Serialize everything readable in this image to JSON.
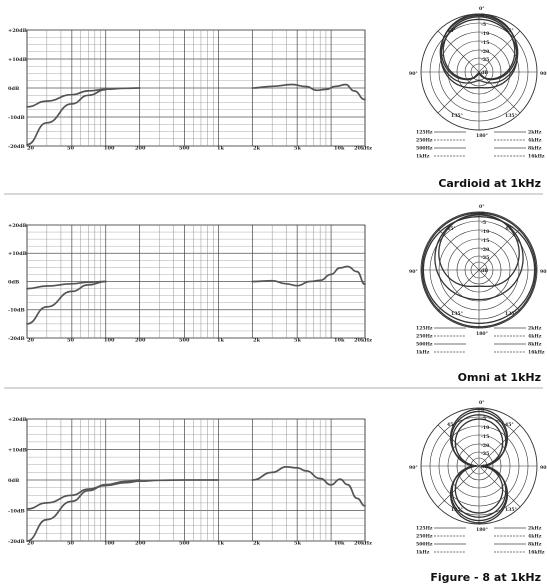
{
  "chart_data": [
    {
      "type": "line",
      "title": "Cardioid at 1kHz",
      "frequency_response": {
        "x_scale": "log",
        "xlim": [
          20,
          20000
        ],
        "ylim": [
          -20,
          20
        ],
        "y_tick_labels": [
          "+20dB",
          "+10dB",
          "0dB",
          "-10dB",
          "-20dB"
        ],
        "x_tick_labels": [
          "20",
          "50",
          "100",
          "200",
          "500",
          "1k",
          "2k",
          "5k",
          "10k",
          "20kHz"
        ],
        "series": [
          {
            "x": [
              20,
              30,
              50,
              70,
              100,
              150,
              200
            ],
            "y": [
              -6.5,
              -4.5,
              -2.3,
              -1.0,
              -0.4,
              -0.1,
              0
            ]
          },
          {
            "x": [
              20,
              30,
              50,
              70,
              100
            ],
            "y": [
              -19.5,
              -12,
              -5.5,
              -2.5,
              -0.6
            ]
          },
          {
            "x": [
              2000,
              3000,
              4500,
              6000,
              7500,
              9000,
              11000,
              13500,
              16000,
              20000
            ],
            "y": [
              0,
              0.6,
              1.2,
              0.5,
              -0.8,
              -0.5,
              0.6,
              1.2,
              -1,
              -4
            ]
          }
        ]
      },
      "polar": {
        "angle_labels": [
          "0°",
          "45°",
          "90°",
          "135°",
          "180°",
          "135°",
          "90°",
          "45°"
        ],
        "ring_labels": [
          "0",
          "-5",
          "-10",
          "-15",
          "-20",
          "-25",
          "dB"
        ],
        "legend_left": [
          "125Hz",
          "250Hz",
          "500Hz",
          "1kHz"
        ],
        "legend_right": [
          "2kHz",
          "4kHz",
          "8kHz",
          "16kHz"
        ]
      }
    },
    {
      "type": "line",
      "title": "Omni at 1kHz",
      "frequency_response": {
        "x_scale": "log",
        "xlim": [
          20,
          20000
        ],
        "ylim": [
          -20,
          20
        ],
        "y_tick_labels": [
          "+20dB",
          "+10dB",
          "0dB",
          "-10dB",
          "-20dB"
        ],
        "x_tick_labels": [
          "20",
          "50",
          "100",
          "200",
          "500",
          "1k",
          "2k",
          "5k",
          "10k",
          "20kHz"
        ],
        "series": [
          {
            "x": [
              20,
              30,
              50,
              70,
              100
            ],
            "y": [
              -2.5,
              -1.6,
              -0.8,
              -0.2,
              0
            ]
          },
          {
            "x": [
              20,
              30,
              50,
              70,
              100
            ],
            "y": [
              -15,
              -9,
              -3.5,
              -1.2,
              0
            ]
          },
          {
            "x": [
              2000,
              3000,
              4000,
              5000,
              6500,
              8000,
              10000,
              12000,
              14000,
              17000,
              20000
            ],
            "y": [
              0,
              0.3,
              -0.8,
              -1.5,
              0,
              0.4,
              2.5,
              4.8,
              5.3,
              3.5,
              -1
            ]
          }
        ]
      },
      "polar": {
        "angle_labels": [
          "0°",
          "45°",
          "90°",
          "135°",
          "180°",
          "135°",
          "90°",
          "45°"
        ],
        "ring_labels": [
          "0",
          "-5",
          "-10",
          "-15",
          "-20",
          "-25",
          "dB"
        ],
        "legend_left": [
          "125Hz",
          "250Hz",
          "500Hz",
          "1kHz"
        ],
        "legend_right": [
          "2kHz",
          "4kHz",
          "8kHz",
          "16kHz"
        ]
      }
    },
    {
      "type": "line",
      "title": "Figure - 8 at 1kHz",
      "frequency_response": {
        "x_scale": "log",
        "xlim": [
          20,
          20000
        ],
        "ylim": [
          -20,
          20
        ],
        "y_tick_labels": [
          "+20dB",
          "+10dB",
          "0dB",
          "-10dB",
          "-20dB"
        ],
        "x_tick_labels": [
          "20",
          "50",
          "100",
          "200",
          "500",
          "1k",
          "2k",
          "5k",
          "10k",
          "20kHz"
        ],
        "series": [
          {
            "x": [
              20,
              30,
              50,
              70,
              100,
              150,
              200,
              300,
              500,
              700,
              1000
            ],
            "y": [
              -9.5,
              -7.5,
              -5,
              -3,
              -1.8,
              -0.9,
              -0.4,
              -0.1,
              0,
              0,
              0
            ]
          },
          {
            "x": [
              20,
              30,
              50,
              70,
              100,
              150,
              200
            ],
            "y": [
              -20,
              -13,
              -7,
              -3.5,
              -1.5,
              -0.5,
              0
            ]
          },
          {
            "x": [
              2000,
              3000,
              4000,
              5000,
              6000,
              8000,
              10000,
              12000,
              14000,
              17000,
              20000
            ],
            "y": [
              0,
              2.5,
              4.3,
              4,
              3,
              0.5,
              -1.6,
              0.3,
              -1.5,
              -6,
              -8.5
            ]
          }
        ]
      },
      "polar": {
        "angle_labels": [
          "0°",
          "45°",
          "90°",
          "135°",
          "180°",
          "135°",
          "90°",
          "45°"
        ],
        "ring_labels": [
          "0",
          "-5",
          "-10",
          "-15",
          "-20",
          "-25",
          "dB"
        ],
        "legend_left": [
          "125Hz",
          "250Hz",
          "500Hz",
          "1kHz"
        ],
        "legend_right": [
          "2kHz",
          "4kHz",
          "8kHz",
          "16kHz"
        ]
      }
    }
  ]
}
